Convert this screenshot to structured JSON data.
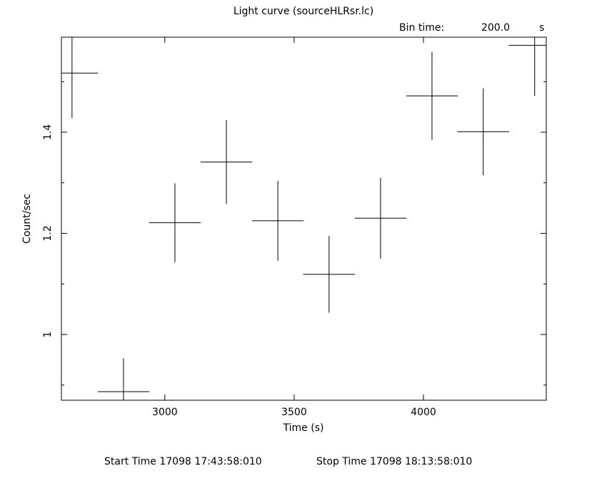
{
  "chart_data": {
    "type": "errorbar",
    "title": "Light curve (sourceHLRsr.lc)",
    "bin_time_label": "Bin time:",
    "bin_time": "200.0",
    "bin_time_unit": "s",
    "xlabel": "Time (s)",
    "ylabel": "Count/sec",
    "start_time": "Start Time 17098 17:43:58:010",
    "stop_time": "Stop Time 17098 18:13:58:010",
    "x": [
      2641,
      2840,
      3039,
      3238,
      3437,
      3635,
      3834,
      4033,
      4231,
      4430
    ],
    "xerr": [
      100,
      100,
      100,
      100,
      100,
      100,
      100,
      100,
      100,
      100
    ],
    "values": [
      1.517,
      0.887,
      1.221,
      1.341,
      1.225,
      1.119,
      1.23,
      1.472,
      1.401,
      1.572
    ],
    "yerr": [
      0.089,
      0.066,
      0.078,
      0.083,
      0.079,
      0.076,
      0.08,
      0.087,
      0.086,
      0.1
    ],
    "color": "#000000",
    "xlim": [
      2600,
      4475
    ],
    "xticks": [
      3000,
      3500,
      4000
    ],
    "ylim": [
      0.87,
      1.588
    ],
    "yticks": [
      1,
      1.2,
      1.4
    ],
    "yminorticks": [
      0.9,
      1.1,
      1.3,
      1.5
    ]
  }
}
